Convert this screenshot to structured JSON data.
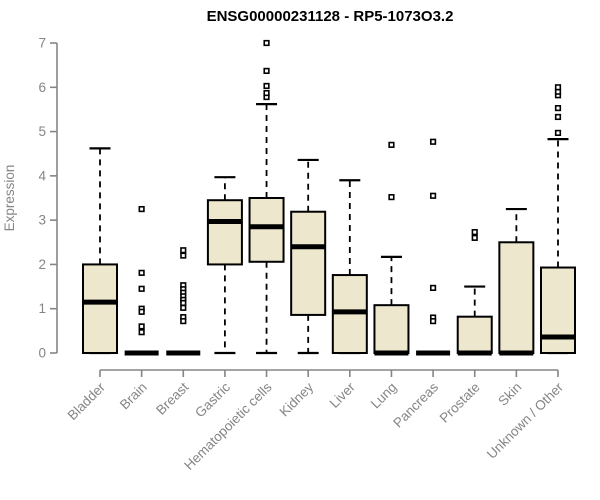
{
  "chart_data": {
    "type": "boxplot",
    "title": "ENSG00000231128 - RP5-1073O3.2",
    "ylabel": "Expression",
    "xlabel": "",
    "ylim": [
      0,
      7
    ],
    "yticks": [
      0,
      1,
      2,
      3,
      4,
      5,
      6,
      7
    ],
    "grid": false,
    "legend": "none",
    "categories": [
      "Bladder",
      "Brain",
      "Breast",
      "Gastric",
      "Hematopoietic cells",
      "Kidney",
      "Liver",
      "Lung",
      "Pancreas",
      "Prostate",
      "Skin",
      "Unknown / Other"
    ],
    "series": [
      {
        "label": "Bladder",
        "whisker_low": 0,
        "q1": 0,
        "median": 1.15,
        "q3": 2.0,
        "whisker_high": 4.62,
        "outliers": []
      },
      {
        "label": "Brain",
        "whisker_low": 0,
        "q1": 0,
        "median": 0,
        "q3": 0,
        "whisker_high": 0,
        "outliers": [
          3.25,
          1.81,
          1.45,
          1.0,
          0.93,
          0.6,
          0.47
        ]
      },
      {
        "label": "Breast",
        "whisker_low": 0,
        "q1": 0,
        "median": 0,
        "q3": 0,
        "whisker_high": 0,
        "outliers": [
          2.32,
          2.2,
          1.53,
          1.44,
          1.36,
          1.28,
          1.2,
          1.13,
          1.02,
          0.81,
          0.72
        ]
      },
      {
        "label": "Gastric",
        "whisker_low": 0,
        "q1": 2.0,
        "median": 2.97,
        "q3": 3.45,
        "whisker_high": 3.97,
        "outliers": []
      },
      {
        "label": "Hematopoietic cells",
        "whisker_low": 0,
        "q1": 2.06,
        "median": 2.85,
        "q3": 3.5,
        "whisker_high": 5.62,
        "outliers": [
          5.78,
          5.87,
          6.03,
          6.37,
          7.0
        ]
      },
      {
        "label": "Kidney",
        "whisker_low": 0,
        "q1": 0.86,
        "median": 2.4,
        "q3": 3.19,
        "whisker_high": 4.36,
        "outliers": []
      },
      {
        "label": "Liver",
        "whisker_low": 0,
        "q1": 0,
        "median": 0.93,
        "q3": 1.76,
        "whisker_high": 3.9,
        "outliers": []
      },
      {
        "label": "Lung",
        "whisker_low": 0,
        "q1": 0,
        "median": 0,
        "q3": 1.08,
        "whisker_high": 2.17,
        "outliers": [
          3.52,
          4.7
        ]
      },
      {
        "label": "Pancreas",
        "whisker_low": 0,
        "q1": 0,
        "median": 0,
        "q3": 0,
        "whisker_high": 0,
        "outliers": [
          4.77,
          3.55,
          1.47,
          0.8,
          0.72
        ]
      },
      {
        "label": "Prostate",
        "whisker_low": 0,
        "q1": 0,
        "median": 0,
        "q3": 0.82,
        "whisker_high": 1.5,
        "outliers": [
          2.6,
          2.73
        ]
      },
      {
        "label": "Skin",
        "whisker_low": 0,
        "q1": 0,
        "median": 0,
        "q3": 2.5,
        "whisker_high": 3.25,
        "outliers": []
      },
      {
        "label": "Unknown / Other",
        "whisker_low": 0,
        "q1": 0,
        "median": 0.36,
        "q3": 1.93,
        "whisker_high": 4.83,
        "outliers": [
          4.97,
          5.33,
          5.53,
          5.82,
          5.9,
          6.0
        ]
      }
    ]
  },
  "colors": {
    "background": "#FFFFFF",
    "box_fill": "#EDE8CD",
    "box_stroke": "#000000",
    "median": "#000000",
    "whisker": "#000000",
    "outlier_stroke": "#000000",
    "outlier_fill": "#FFFFFF",
    "axis": "#858585",
    "tick_label": "#858585",
    "title": "#000000"
  }
}
